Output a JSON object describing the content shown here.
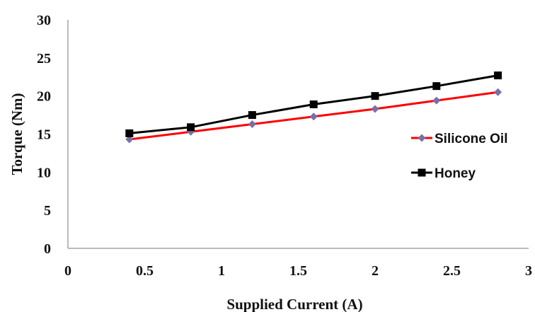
{
  "chart_data": {
    "type": "line",
    "xlabel": "Supplied Current (A)",
    "ylabel": "Torque (Nm)",
    "xlim": [
      0,
      3
    ],
    "ylim": [
      0,
      30
    ],
    "x_ticks": [
      "0",
      "0.5",
      "1",
      "1.5",
      "2",
      "2.5",
      "3"
    ],
    "y_ticks": [
      "0",
      "5",
      "10",
      "15",
      "20",
      "25",
      "30"
    ],
    "grid": false,
    "legend_position": "right",
    "series": [
      {
        "name": "Silicone Oil",
        "color": "#ff0000",
        "marker": "diamond",
        "marker_color": "#7a6fa8",
        "x": [
          0.4,
          0.8,
          1.2,
          1.6,
          2.0,
          2.4,
          2.8
        ],
        "y": [
          14.3,
          15.3,
          16.3,
          17.3,
          18.3,
          19.4,
          20.5
        ]
      },
      {
        "name": "Honey",
        "color": "#000000",
        "marker": "square",
        "marker_color": "#000000",
        "x": [
          0.4,
          0.8,
          1.2,
          1.6,
          2.0,
          2.4,
          2.8
        ],
        "y": [
          15.1,
          15.9,
          17.5,
          18.9,
          20.0,
          21.3,
          22.7
        ]
      }
    ]
  }
}
